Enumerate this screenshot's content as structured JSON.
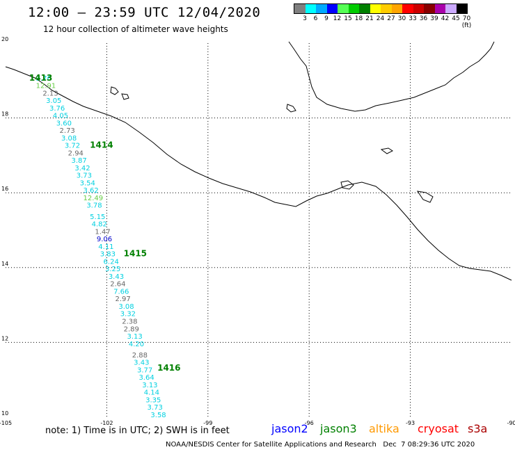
{
  "header": {
    "title": "12:00 – 23:59 UTC 12/04/2020",
    "subtitle": "12 hour collection of altimeter wave heights"
  },
  "color_scale": {
    "labels": [
      "3",
      "6",
      "9",
      "12",
      "15",
      "18",
      "21",
      "24",
      "27",
      "30",
      "33",
      "36",
      "39",
      "42",
      "45",
      "70 (ft)"
    ],
    "colors": [
      "#808080",
      "#00ffff",
      "#00aaff",
      "#0000ff",
      "#55ff55",
      "#00cc00",
      "#008000",
      "#ffff00",
      "#ffcc00",
      "#ffa500",
      "#ff0000",
      "#cc0000",
      "#880000",
      "#aa00aa",
      "#ccaaff",
      "#000000"
    ]
  },
  "map": {
    "axis": {
      "lon_ticks": [
        "-105",
        "-102",
        "-99",
        "-96",
        "-93",
        "-90"
      ],
      "lat_ticks": [
        "20",
        "18",
        "16",
        "14",
        "12",
        "10"
      ]
    },
    "passes": [
      {
        "label": "1413",
        "lon": -104.3,
        "lat": 19.0
      },
      {
        "label": "1414",
        "lon": -102.5,
        "lat": 17.2
      },
      {
        "label": "1415",
        "lon": -101.5,
        "lat": 14.3
      },
      {
        "label": "1416",
        "lon": -100.5,
        "lat": 11.25
      }
    ],
    "readings": [
      {
        "v": "3.76",
        "lon": -104.1,
        "lat": 19.0,
        "c": "#00d0e0"
      },
      {
        "v": "12.91",
        "lon": -104.1,
        "lat": 18.8,
        "c": "#66cc44"
      },
      {
        "v": "2.13",
        "lon": -103.9,
        "lat": 18.6,
        "c": "#666666"
      },
      {
        "v": "3.05",
        "lon": -103.8,
        "lat": 18.4,
        "c": "#00d0e0"
      },
      {
        "v": "3.76",
        "lon": -103.7,
        "lat": 18.2,
        "c": "#00d0e0"
      },
      {
        "v": "4.05",
        "lon": -103.6,
        "lat": 18.0,
        "c": "#00d0e0"
      },
      {
        "v": "3.60",
        "lon": -103.5,
        "lat": 17.8,
        "c": "#00d0e0"
      },
      {
        "v": "2.73",
        "lon": -103.4,
        "lat": 17.6,
        "c": "#666666"
      },
      {
        "v": "3.08",
        "lon": -103.35,
        "lat": 17.4,
        "c": "#00d0e0"
      },
      {
        "v": "3.72",
        "lon": -103.25,
        "lat": 17.2,
        "c": "#00d0e0"
      },
      {
        "v": "2.94",
        "lon": -103.15,
        "lat": 17.0,
        "c": "#666666"
      },
      {
        "v": "3.87",
        "lon": -103.05,
        "lat": 16.8,
        "c": "#00d0e0"
      },
      {
        "v": "3.42",
        "lon": -102.95,
        "lat": 16.6,
        "c": "#00d0e0"
      },
      {
        "v": "3.73",
        "lon": -102.9,
        "lat": 16.4,
        "c": "#00d0e0"
      },
      {
        "v": "3.54",
        "lon": -102.8,
        "lat": 16.2,
        "c": "#00d0e0"
      },
      {
        "v": "3.62",
        "lon": -102.7,
        "lat": 16.0,
        "c": "#00d0e0"
      },
      {
        "v": "12.49",
        "lon": -102.7,
        "lat": 15.8,
        "c": "#66cc44"
      },
      {
        "v": "3.78",
        "lon": -102.6,
        "lat": 15.6,
        "c": "#00d0e0"
      },
      {
        "v": "5.15",
        "lon": -102.5,
        "lat": 15.3,
        "c": "#00d0e0"
      },
      {
        "v": "4.82",
        "lon": -102.45,
        "lat": 15.1,
        "c": "#00d0e0"
      },
      {
        "v": "1.47",
        "lon": -102.35,
        "lat": 14.9,
        "c": "#666666"
      },
      {
        "v": "9.06",
        "lon": -102.3,
        "lat": 14.7,
        "c": "#0000cc"
      },
      {
        "v": "4.11",
        "lon": -102.25,
        "lat": 14.5,
        "c": "#00d0e0"
      },
      {
        "v": "3.83",
        "lon": -102.2,
        "lat": 14.3,
        "c": "#00d0e0"
      },
      {
        "v": "6.24",
        "lon": -102.1,
        "lat": 14.1,
        "c": "#00d0e0"
      },
      {
        "v": "3.25",
        "lon": -102.05,
        "lat": 13.9,
        "c": "#00d0e0"
      },
      {
        "v": "3.43",
        "lon": -101.95,
        "lat": 13.7,
        "c": "#00d0e0"
      },
      {
        "v": "2.64",
        "lon": -101.9,
        "lat": 13.5,
        "c": "#666666"
      },
      {
        "v": "7.66",
        "lon": -101.8,
        "lat": 13.3,
        "c": "#00d0e0"
      },
      {
        "v": "2.97",
        "lon": -101.75,
        "lat": 13.1,
        "c": "#666666"
      },
      {
        "v": "3.08",
        "lon": -101.65,
        "lat": 12.9,
        "c": "#00d0e0"
      },
      {
        "v": "3.32",
        "lon": -101.6,
        "lat": 12.7,
        "c": "#00d0e0"
      },
      {
        "v": "2.38",
        "lon": -101.55,
        "lat": 12.5,
        "c": "#666666"
      },
      {
        "v": "2.89",
        "lon": -101.5,
        "lat": 12.3,
        "c": "#666666"
      },
      {
        "v": "3.13",
        "lon": -101.4,
        "lat": 12.1,
        "c": "#00d0e0"
      },
      {
        "v": "4.20",
        "lon": -101.35,
        "lat": 11.9,
        "c": "#00d0e0"
      },
      {
        "v": "2.88",
        "lon": -101.25,
        "lat": 11.6,
        "c": "#666666"
      },
      {
        "v": "3.43",
        "lon": -101.2,
        "lat": 11.4,
        "c": "#00d0e0"
      },
      {
        "v": "3.77",
        "lon": -101.1,
        "lat": 11.2,
        "c": "#00d0e0"
      },
      {
        "v": "3.64",
        "lon": -101.05,
        "lat": 11.0,
        "c": "#00d0e0"
      },
      {
        "v": "3.13",
        "lon": -100.95,
        "lat": 10.8,
        "c": "#00d0e0"
      },
      {
        "v": "4.14",
        "lon": -100.9,
        "lat": 10.6,
        "c": "#00d0e0"
      },
      {
        "v": "3.35",
        "lon": -100.85,
        "lat": 10.4,
        "c": "#00d0e0"
      },
      {
        "v": "3.73",
        "lon": -100.8,
        "lat": 10.2,
        "c": "#00d0e0"
      },
      {
        "v": "3.58",
        "lon": -100.7,
        "lat": 10.0,
        "c": "#00d0e0"
      }
    ]
  },
  "footer": {
    "note": "note: 1) Time is in UTC; 2) SWH is in feet",
    "satellites": [
      {
        "name": "jason2",
        "color": "#0000ff"
      },
      {
        "name": "jason3",
        "color": "#008000"
      },
      {
        "name": "altika",
        "color": "#ff9900"
      },
      {
        "name": "cryosat",
        "color": "#ff0000"
      },
      {
        "name": "s3a",
        "color": "#aa0000"
      }
    ],
    "credit": "NOAA/NESDIS Center for Satellite Applications and Research   Dec  7 08:29:36 UTC 2020"
  }
}
